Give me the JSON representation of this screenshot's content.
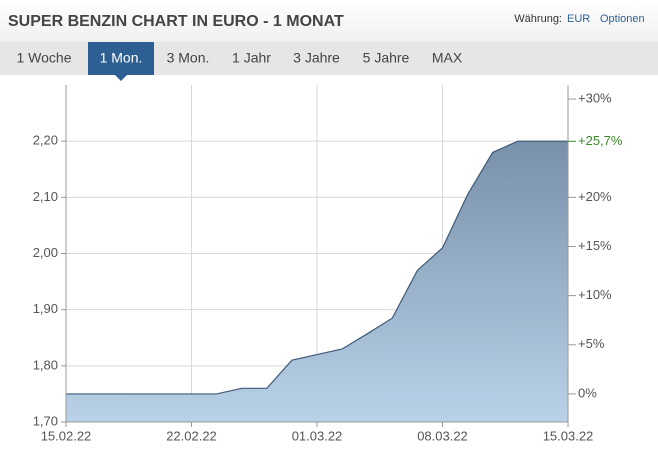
{
  "header": {
    "title": "SUPER BENZIN CHART IN EURO - 1 MONAT",
    "currency_label": "Währung:",
    "currency": "EUR",
    "options": "Optionen"
  },
  "tabs": {
    "items": [
      "1 Woche",
      "1 Mon.",
      "3 Mon.",
      "1 Jahr",
      "3 Jahre",
      "5 Jahre",
      "MAX"
    ],
    "selected": 1
  },
  "chart_data": {
    "type": "area",
    "categories": [
      "15.02.22",
      null,
      null,
      null,
      null,
      "22.02.22",
      null,
      null,
      null,
      null,
      "01.03.22",
      null,
      null,
      null,
      null,
      "08.03.22",
      null,
      null,
      null,
      null,
      "15.03.22"
    ],
    "values": [
      1.75,
      1.75,
      1.75,
      1.75,
      1.75,
      1.75,
      1.75,
      1.76,
      1.76,
      1.81,
      1.82,
      1.83,
      1.857,
      1.885,
      1.97,
      2.01,
      2.105,
      2.18,
      2.2,
      2.2,
      2.2
    ],
    "color": "#3f5a78",
    "ylim": [
      1.7,
      2.3
    ],
    "yticks": [
      {
        "value": 1.7,
        "label": "1,70"
      },
      {
        "value": 1.8,
        "label": "1,80"
      },
      {
        "value": 1.9,
        "label": "1,90"
      },
      {
        "value": 2.0,
        "label": "2,00"
      },
      {
        "value": 2.1,
        "label": "2,10"
      },
      {
        "value": 2.2,
        "label": "2,20"
      }
    ],
    "y2lim": [
      -2.857,
      31.43
    ],
    "y2ticks": [
      {
        "value": 0,
        "label": "0%"
      },
      {
        "value": 5,
        "label": "+5%"
      },
      {
        "value": 10,
        "label": "+10%"
      },
      {
        "value": 15,
        "label": "+15%"
      },
      {
        "value": 20,
        "label": "+20%"
      },
      {
        "value": 30,
        "label": "+30%"
      }
    ],
    "last_change": {
      "value": 25.7,
      "label": "+25,7%",
      "color": "#3b8a2a"
    },
    "grid": true
  }
}
